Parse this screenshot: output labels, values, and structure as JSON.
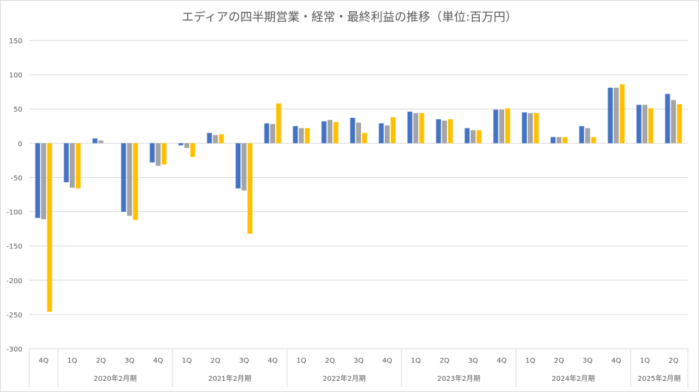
{
  "chart_data": {
    "type": "bar",
    "title": "エディアの四半期営業・経常・最終利益の推移（単位:百万円）",
    "xlabel": "",
    "ylabel": "",
    "ylim": [
      -300,
      150
    ],
    "yticks": [
      150,
      100,
      50,
      0,
      -50,
      -100,
      -150,
      -200,
      -250,
      -300
    ],
    "grid": true,
    "legend": "none",
    "categories": [
      "4Q",
      "1Q",
      "2Q",
      "3Q",
      "4Q",
      "1Q",
      "2Q",
      "3Q",
      "4Q",
      "1Q",
      "2Q",
      "3Q",
      "4Q",
      "1Q",
      "2Q",
      "3Q",
      "4Q",
      "1Q",
      "2Q",
      "3Q",
      "4Q",
      "1Q",
      "2Q"
    ],
    "groups": [
      {
        "label": "",
        "count": 1
      },
      {
        "label": "2020年2月期",
        "count": 4
      },
      {
        "label": "2021年2月期",
        "count": 4
      },
      {
        "label": "2022年2月期",
        "count": 4
      },
      {
        "label": "2023年2月期",
        "count": 4
      },
      {
        "label": "2024年2月期",
        "count": 4
      },
      {
        "label": "2025年2月期",
        "count": 2
      }
    ],
    "series": [
      {
        "color": "#4472C4",
        "values": [
          -109,
          -57,
          7,
          -100,
          -28,
          -3,
          15,
          -66,
          29,
          25,
          32,
          37,
          29,
          46,
          35,
          22,
          49,
          45,
          9,
          25,
          81,
          56,
          72
        ]
      },
      {
        "color": "#A5A5A5",
        "values": [
          -111,
          -65,
          4,
          -106,
          -33,
          -7,
          12,
          -69,
          28,
          22,
          34,
          30,
          26,
          44,
          33,
          19,
          49,
          44,
          9,
          22,
          81,
          56,
          63
        ]
      },
      {
        "color": "#FFC000",
        "values": [
          -246,
          -66,
          0,
          -112,
          -31,
          -20,
          13,
          -132,
          58,
          22,
          31,
          15,
          38,
          44,
          35,
          19,
          51,
          44,
          9,
          9,
          86,
          51,
          57
        ]
      }
    ]
  }
}
